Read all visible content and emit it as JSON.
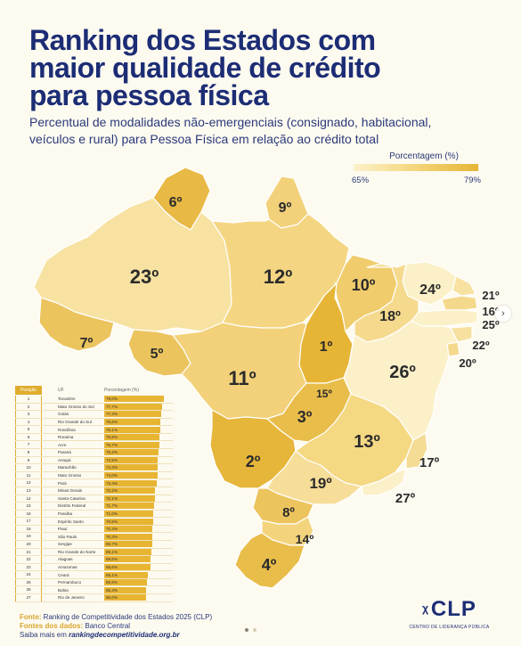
{
  "title_lines": [
    "Ranking dos Estados com",
    "maior qualidade de crédito",
    "para pessoa física"
  ],
  "subtitle_lines": [
    "Percentual de modalidades não-emergenciais (consignado, habitacional,",
    "veículos e rural) para Pessoa Física em relação ao crédito total"
  ],
  "legend": {
    "title": "Porcentagem (%)",
    "min_label": "65%",
    "max_label": "79%",
    "low_color": "#fbf2cb",
    "high_color": "#e6b536"
  },
  "map_labels": [
    {
      "uf": "RR",
      "rank": "6º"
    },
    {
      "uf": "AP",
      "rank": "9º"
    },
    {
      "uf": "AM",
      "rank": "23º"
    },
    {
      "uf": "PA",
      "rank": "12º"
    },
    {
      "uf": "MA",
      "rank": "10º"
    },
    {
      "uf": "CE",
      "rank": "24º"
    },
    {
      "uf": "RN",
      "rank": "21º"
    },
    {
      "uf": "PB",
      "rank": "16º"
    },
    {
      "uf": "PE",
      "rank": "25º"
    },
    {
      "uf": "AL",
      "rank": "22º"
    },
    {
      "uf": "SE",
      "rank": "20º"
    },
    {
      "uf": "PI",
      "rank": "18º"
    },
    {
      "uf": "AC",
      "rank": "7º"
    },
    {
      "uf": "RO",
      "rank": "5º"
    },
    {
      "uf": "TO",
      "rank": "1º"
    },
    {
      "uf": "BA",
      "rank": "26º"
    },
    {
      "uf": "MT",
      "rank": "11º"
    },
    {
      "uf": "DF",
      "rank": "15º"
    },
    {
      "uf": "GO",
      "rank": "3º"
    },
    {
      "uf": "MG",
      "rank": "13º"
    },
    {
      "uf": "ES",
      "rank": "17º"
    },
    {
      "uf": "MS",
      "rank": "2º"
    },
    {
      "uf": "SP",
      "rank": "19º"
    },
    {
      "uf": "RJ",
      "rank": "27º"
    },
    {
      "uf": "PR",
      "rank": "8º"
    },
    {
      "uf": "SC",
      "rank": "14º"
    },
    {
      "uf": "RS",
      "rank": "4º"
    }
  ],
  "table": {
    "headers": {
      "position": "Posição",
      "uf": "UF",
      "percent": "Porcentagem (%)"
    },
    "rows": [
      {
        "pos": "1",
        "uf": "Tocantins",
        "pct": "79,0%",
        "value": 79.0
      },
      {
        "pos": "2",
        "uf": "Mato Grosso do Sul",
        "pct": "77,7%",
        "value": 77.7
      },
      {
        "pos": "3",
        "uf": "Goiás",
        "pct": "77,3%",
        "value": 77.3
      },
      {
        "pos": "4",
        "uf": "Rio Grande do Sul",
        "pct": "76,6%",
        "value": 76.6
      },
      {
        "pos": "5",
        "uf": "Rondônia",
        "pct": "76,1%",
        "value": 76.1
      },
      {
        "pos": "6",
        "uf": "Roraima",
        "pct": "75,8%",
        "value": 75.8
      },
      {
        "pos": "7",
        "uf": "Acre",
        "pct": "75,7%",
        "value": 75.7
      },
      {
        "pos": "8",
        "uf": "Paraná",
        "pct": "75,2%",
        "value": 75.2
      },
      {
        "pos": "9",
        "uf": "Amapá",
        "pct": "74,5%",
        "value": 74.5
      },
      {
        "pos": "10",
        "uf": "Maranhão",
        "pct": "74,3%",
        "value": 74.3
      },
      {
        "pos": "11",
        "uf": "Mato Grosso",
        "pct": "74,0%",
        "value": 74.0
      },
      {
        "pos": "12",
        "uf": "Pará",
        "pct": "73,4%",
        "value": 73.4
      },
      {
        "pos": "13",
        "uf": "Minas Gerais",
        "pct": "72,2%",
        "value": 72.2
      },
      {
        "pos": "14",
        "uf": "Santa Catarina",
        "pct": "72,1%",
        "value": 72.1
      },
      {
        "pos": "15",
        "uf": "Distrito Federal",
        "pct": "71,7%",
        "value": 71.7
      },
      {
        "pos": "16",
        "uf": "Paraíba",
        "pct": "71,0%",
        "value": 71.0
      },
      {
        "pos": "17",
        "uf": "Espírito Santo",
        "pct": "70,5%",
        "value": 70.5
      },
      {
        "pos": "18",
        "uf": "Piauí",
        "pct": "70,3%",
        "value": 70.3
      },
      {
        "pos": "19",
        "uf": "São Paulo",
        "pct": "70,3%",
        "value": 70.3
      },
      {
        "pos": "20",
        "uf": "Sergipe",
        "pct": "69,7%",
        "value": 69.7
      },
      {
        "pos": "21",
        "uf": "Rio Grande do Norte",
        "pct": "69,1%",
        "value": 69.1
      },
      {
        "pos": "22",
        "uf": "Alagoas",
        "pct": "68,6%",
        "value": 68.6
      },
      {
        "pos": "23",
        "uf": "Amazonas",
        "pct": "68,6%",
        "value": 68.6
      },
      {
        "pos": "24",
        "uf": "Ceará",
        "pct": "66,1%",
        "value": 66.1
      },
      {
        "pos": "25",
        "uf": "Pernambuco",
        "pct": "65,6%",
        "value": 65.6
      },
      {
        "pos": "26",
        "uf": "Bahia",
        "pct": "65,3%",
        "value": 65.3
      },
      {
        "pos": "27",
        "uf": "Rio de Janeiro",
        "pct": "65,0%",
        "value": 65.0
      }
    ]
  },
  "footer": {
    "source_label": "Fonte:",
    "source_text": "Ranking de Competitividade dos Estados 2025 (CLP)",
    "data_label": "Fontes dos dados:",
    "data_text": "Banco Central",
    "more_text": "Saiba mais em",
    "more_link": "rankingdecompetitividade.org.br"
  },
  "logo": {
    "mark": "CLP",
    "subtitle": "CENTRO DE LIDERANÇA PÚBLICA"
  },
  "nav": {
    "next_glyph": "›"
  }
}
